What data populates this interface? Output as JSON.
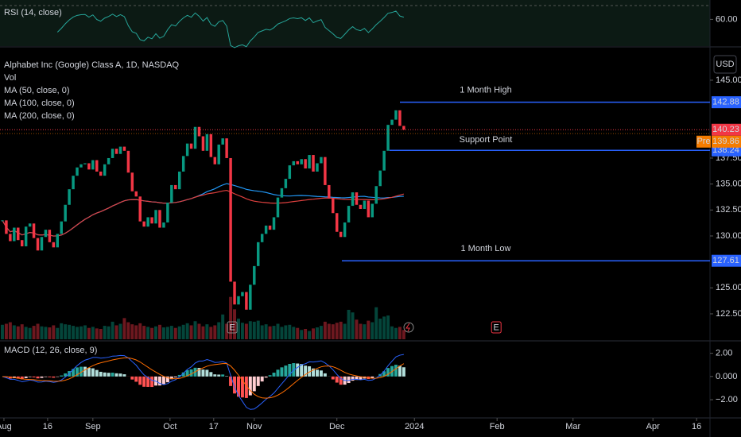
{
  "chart_data": {
    "type": "candlestick",
    "title": "Alphabet Inc (Google) Class A, 1D, NASDAQ",
    "currency": "USD",
    "indicators": [
      "Vol",
      "MA (50, close, 0)",
      "MA (100, close, 0)",
      "MA (200, close, 0)"
    ],
    "close": [
      131.5,
      130.2,
      129.5,
      130.8,
      129.6,
      129.0,
      130.9,
      131.2,
      129.8,
      128.6,
      129.9,
      130.6,
      129.4,
      128.9,
      130.2,
      131.4,
      133.0,
      134.5,
      135.8,
      136.6,
      136.9,
      137.0,
      136.4,
      137.3,
      136.2,
      135.8,
      136.9,
      137.5,
      138.4,
      137.9,
      138.6,
      138.2,
      136.1,
      134.3,
      133.8,
      131.4,
      130.9,
      131.8,
      131.2,
      132.5,
      130.8,
      131.3,
      133.2,
      134.9,
      134.5,
      136.2,
      137.7,
      138.9,
      138.4,
      140.5,
      139.6,
      138.2,
      139.8,
      137.6,
      136.9,
      138.8,
      139.4,
      137.5,
      125.6,
      123.4,
      124.2,
      124.6,
      122.9,
      125.3,
      127.1,
      129.4,
      130.2,
      131.0,
      130.6,
      131.8,
      133.7,
      134.6,
      135.5,
      136.8,
      137.2,
      136.9,
      137.4,
      136.5,
      137.8,
      136.2,
      137.0,
      137.6,
      134.9,
      133.6,
      132.2,
      130.4,
      129.9,
      131.3,
      132.9,
      134.2,
      133.0,
      132.6,
      133.4,
      131.8,
      133.1,
      134.8,
      136.3,
      138.2,
      140.7,
      141.2,
      142.1,
      140.6,
      140.23
    ],
    "volume": [
      28,
      30,
      33,
      27,
      25,
      29,
      24,
      22,
      26,
      30,
      25,
      24,
      23,
      27,
      22,
      31,
      29,
      28,
      26,
      24,
      25,
      27,
      22,
      24,
      21,
      20,
      26,
      25,
      34,
      27,
      30,
      41,
      33,
      29,
      27,
      31,
      26,
      24,
      22,
      25,
      28,
      23,
      24,
      26,
      22,
      25,
      28,
      31,
      27,
      35,
      30,
      25,
      29,
      24,
      27,
      33,
      48,
      30,
      82,
      58,
      40,
      32,
      30,
      35,
      34,
      36,
      27,
      29,
      25,
      26,
      30,
      24,
      27,
      28,
      24,
      22,
      18,
      20,
      16,
      21,
      23,
      26,
      34,
      30,
      29,
      32,
      34,
      30,
      57,
      52,
      38,
      30,
      29,
      36,
      33,
      62,
      40,
      44,
      46,
      25,
      22,
      24,
      18
    ],
    "colors": {
      "up": "#089981",
      "down": "#f23645",
      "ma50": "#2196f3",
      "ma100": "#e0413f"
    },
    "ylim": [
      120.05,
      147.98
    ],
    "yticks": [
      {
        "value": 145,
        "label": "145.00"
      },
      {
        "value": 137.5,
        "label": "137.50"
      },
      {
        "value": 135,
        "label": "135.00"
      },
      {
        "value": 132.5,
        "label": "132.50"
      },
      {
        "value": 130,
        "label": "130.00"
      },
      {
        "value": 125,
        "label": "125.00"
      },
      {
        "value": 122.5,
        "label": "122.50"
      }
    ],
    "xlim": [
      -0.6,
      179.8
    ],
    "xticks": [
      {
        "value": 0.4,
        "label": "Aug"
      },
      {
        "value": 11.5,
        "label": "16"
      },
      {
        "value": 23,
        "label": "Sep"
      },
      {
        "value": 42.6,
        "label": "Oct"
      },
      {
        "value": 53.7,
        "label": "17"
      },
      {
        "value": 64,
        "label": "Nov"
      },
      {
        "value": 85,
        "label": "Dec"
      },
      {
        "value": 104.7,
        "label": "2024"
      },
      {
        "value": 125.7,
        "label": "Feb"
      },
      {
        "value": 145,
        "label": "Mar"
      },
      {
        "value": 165.3,
        "label": "Apr"
      },
      {
        "value": 176.4,
        "label": "16"
      }
    ],
    "levels": [
      {
        "label": "1 Month High",
        "value": 142.88,
        "color": "#2962ff"
      },
      {
        "label": "Support Point",
        "value": 138.24,
        "color": "#2962ff"
      },
      {
        "label": "1 Month Low",
        "value": 127.61,
        "color": "#2962ff"
      }
    ],
    "last_price": {
      "value": 140.23,
      "color": "#f23645"
    },
    "pre_market": {
      "label": "Pre",
      "value": 139.86,
      "color": "#f57c00"
    },
    "events": [
      {
        "label": "E",
        "x": 58.4
      },
      {
        "label": "E",
        "x": 125.5
      }
    ],
    "rsi": {
      "title": "RSI (14, close)",
      "ylim": [
        30,
        80
      ],
      "yticks": [
        {
          "value": 60,
          "label": "60.00"
        }
      ],
      "color": "#26a69a"
    },
    "macd": {
      "title": "MACD (12, 26, close, 9)",
      "ylim": [
        -3.5,
        3
      ],
      "yticks": [
        {
          "value": 2,
          "label": "2.00"
        },
        {
          "value": 0,
          "label": "0.000"
        },
        {
          "value": -2,
          "label": "−2.00"
        }
      ],
      "macd_color": "#2962ff",
      "signal_color": "#ff6d00"
    }
  }
}
